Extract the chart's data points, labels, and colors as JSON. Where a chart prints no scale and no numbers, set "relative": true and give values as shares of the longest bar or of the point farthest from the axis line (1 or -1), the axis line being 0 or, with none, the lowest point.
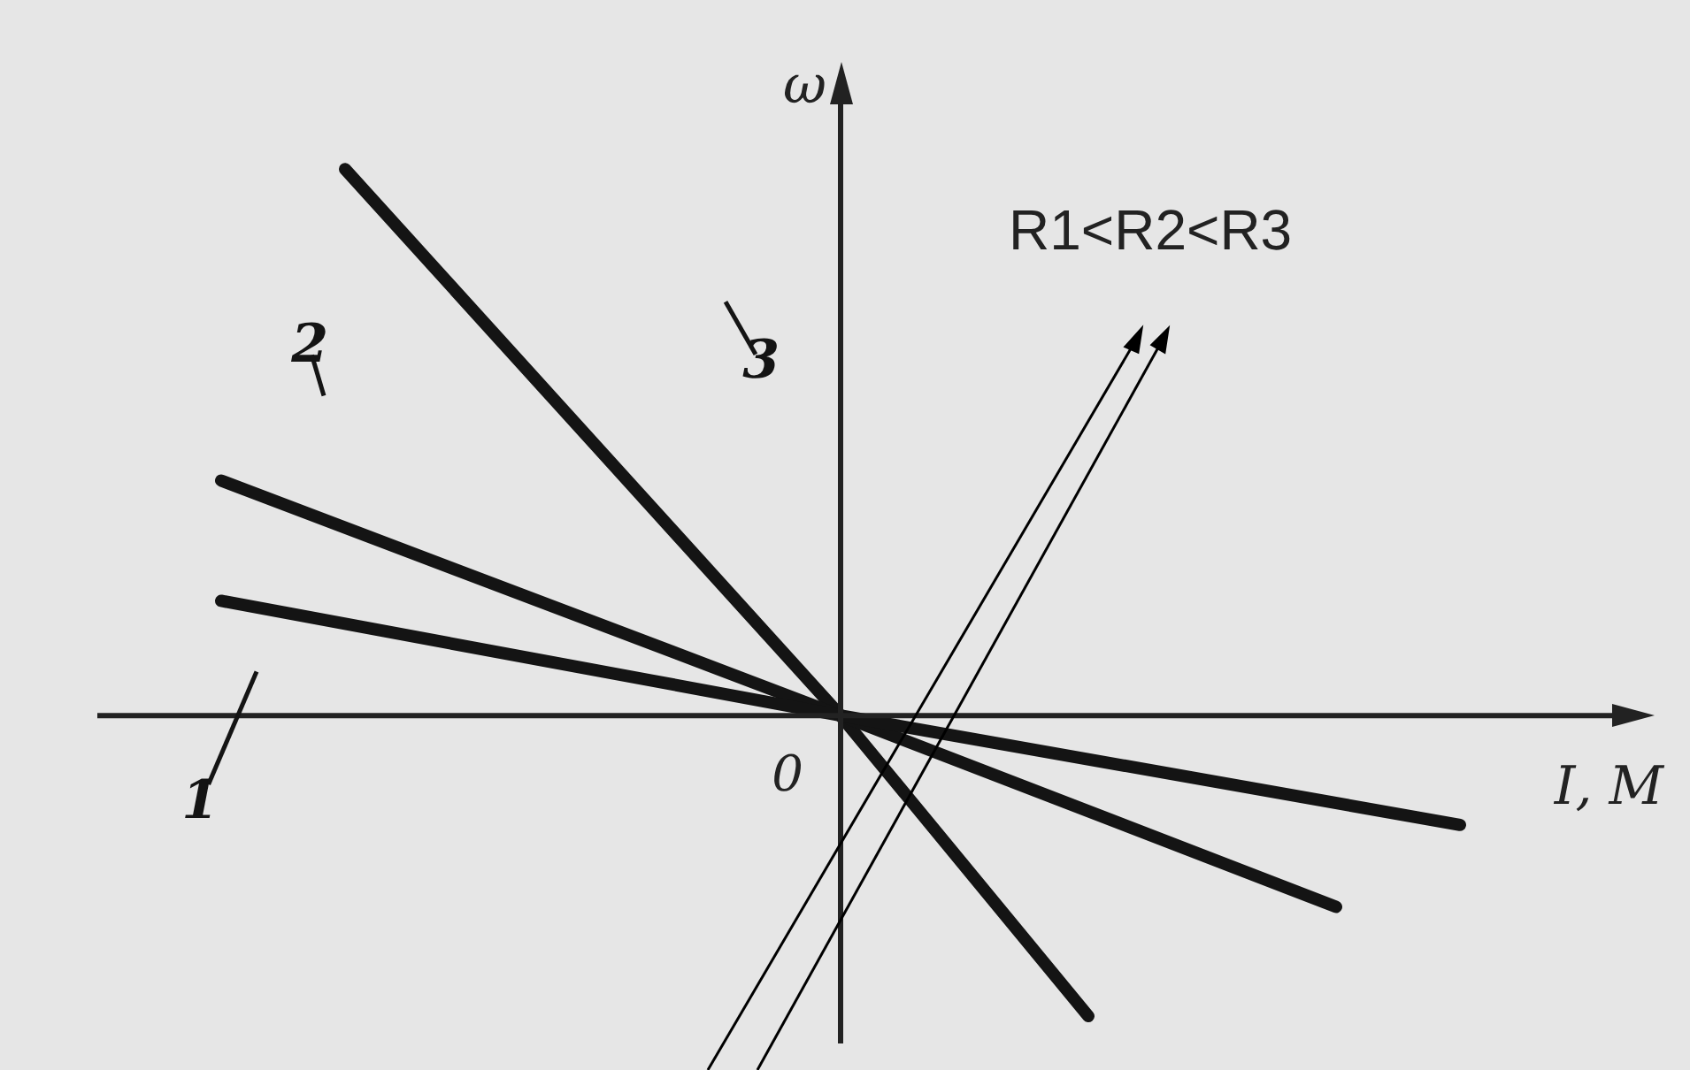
{
  "chart_data": {
    "type": "line",
    "relative": true,
    "xlabel": "I, M",
    "ylabel": "ω",
    "annotations": [
      "R1<R2<R3",
      "0"
    ],
    "categories": [
      null,
      null,
      null,
      null,
      null,
      null,
      null,
      null,
      null,
      null,
      null,
      null,
      null,
      null,
      null,
      null,
      null,
      null,
      null,
      null,
      null,
      null,
      null,
      null,
      null,
      null
    ],
    "series": [
      {
        "name": "1",
        "color": "#141414",
        "values": [
          null,
          null,
          0.21,
          null,
          null,
          null,
          null,
          null,
          null,
          null,
          null,
          null,
          0,
          null,
          null,
          null,
          null,
          null,
          null,
          null,
          null,
          null,
          -0.2,
          null,
          null,
          null
        ]
      },
      {
        "name": "2",
        "color": "#141414",
        "values": [
          null,
          null,
          0.43,
          null,
          null,
          null,
          null,
          null,
          null,
          null,
          null,
          null,
          0,
          null,
          null,
          null,
          null,
          null,
          null,
          null,
          -0.35,
          null,
          null,
          null,
          null,
          null
        ]
      },
      {
        "name": "3",
        "color": "#141414",
        "values": [
          null,
          null,
          null,
          null,
          1,
          null,
          null,
          null,
          null,
          null,
          null,
          null,
          0,
          null,
          null,
          null,
          -0.55,
          null,
          null,
          null,
          null,
          null,
          null,
          null,
          null,
          null
        ]
      }
    ],
    "marker": "none",
    "line_style": "solid"
  }
}
